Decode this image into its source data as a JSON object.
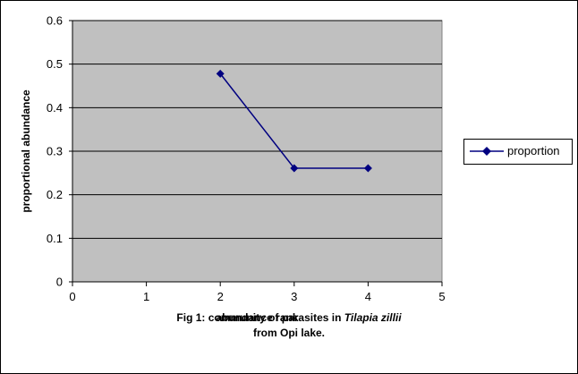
{
  "chart_data": {
    "type": "line",
    "title": "",
    "xlabel": "abundance rank",
    "ylabel": "proportional abundance",
    "xlim": [
      0,
      5
    ],
    "ylim": [
      0,
      0.6
    ],
    "x_ticks": [
      0,
      1,
      2,
      3,
      4,
      5
    ],
    "y_ticks": [
      0,
      0.1,
      0.2,
      0.3,
      0.4,
      0.5,
      0.6
    ],
    "y_tick_labels": [
      "0",
      "0.1",
      "0.2",
      "0.3",
      "0.4",
      "0.5",
      "0.6"
    ],
    "grid": "horizontal",
    "legend_position": "right",
    "plot_background": "#c0c0c0",
    "series": [
      {
        "name": "proportion",
        "color": "#000080",
        "marker": "diamond",
        "x": [
          2,
          3,
          4
        ],
        "y": [
          0.478,
          0.261,
          0.261
        ]
      }
    ]
  },
  "caption": {
    "line1_prefix": "Fig 1: community of parasites in ",
    "line1_italic": "Tilapia zillii",
    "line2": "from Opi lake."
  }
}
